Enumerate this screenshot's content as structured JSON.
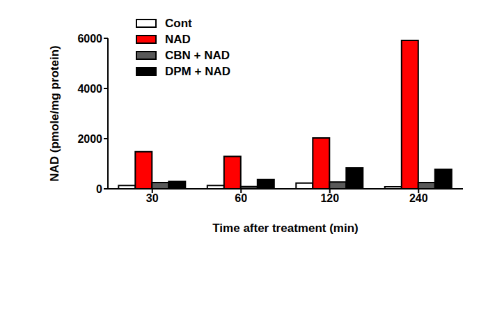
{
  "chart_data": {
    "type": "bar",
    "x_label": "Time after treatment (min)",
    "y_label": "NAD (pmole/mg protein)",
    "categories": [
      "30",
      "60",
      "120",
      "240"
    ],
    "series": [
      {
        "name": "Cont",
        "color": "#ffffff",
        "values": [
          130,
          130,
          230,
          80
        ]
      },
      {
        "name": "NAD",
        "color": "#ff0000",
        "values": [
          1480,
          1290,
          2030,
          5920
        ]
      },
      {
        "name": "CBN + NAD",
        "color": "#595959",
        "values": [
          250,
          90,
          270,
          250
        ]
      },
      {
        "name": "DPM + NAD",
        "color": "#000000",
        "values": [
          290,
          370,
          830,
          780
        ]
      }
    ],
    "ylim": [
      0,
      6000
    ],
    "yticks": [
      0,
      2000,
      4000,
      6000
    ],
    "grid": false,
    "legend": "upper left"
  }
}
